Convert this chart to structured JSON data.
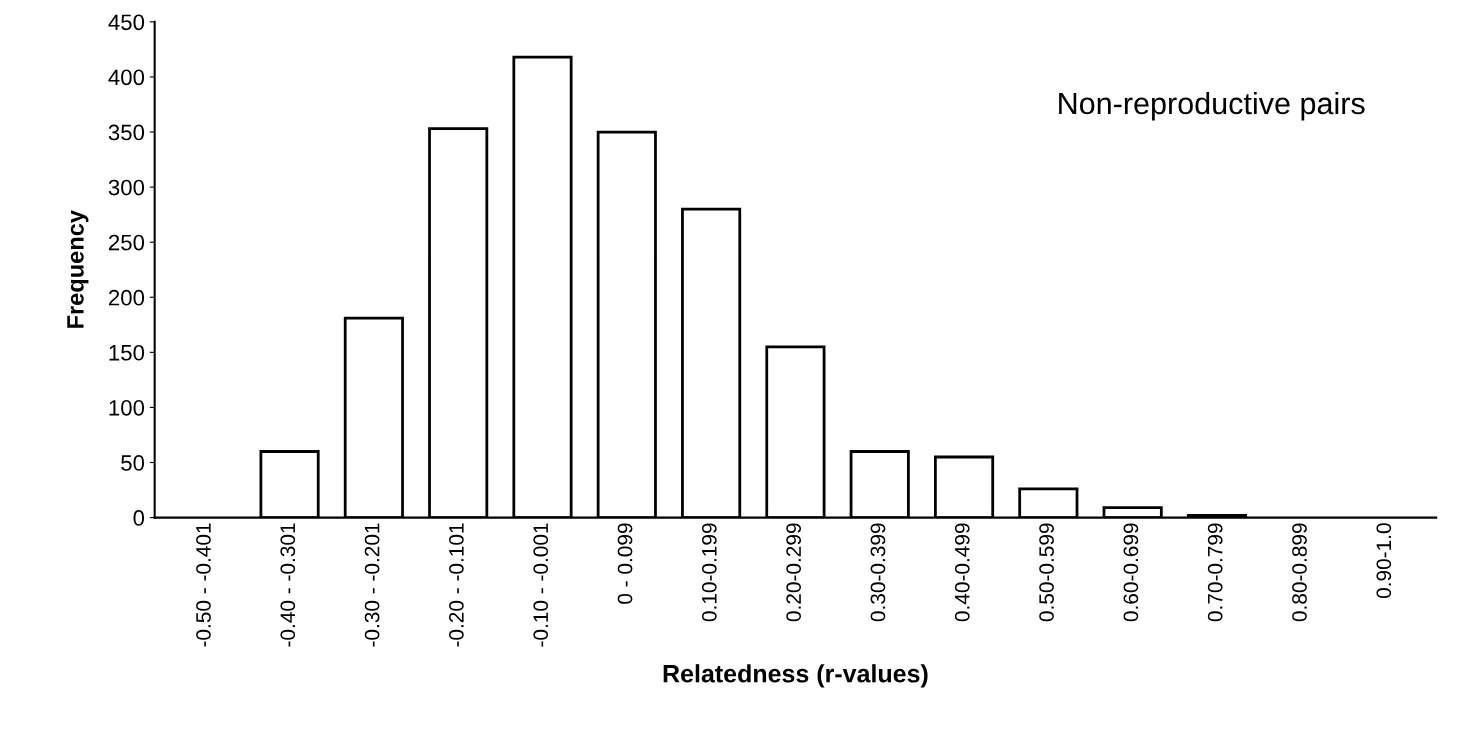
{
  "chart_data": {
    "type": "bar",
    "categories": [
      "-0.50 - -0.401",
      "-0.40 - -0.301",
      "-0.30 - -0.201",
      "-0.20 - -0.101",
      "-0.10 - -0.001",
      "0 - 0.099",
      "0.10-0.199",
      "0.20-0.299",
      "0.30-0.399",
      "0.40-0.499",
      "0.50-0.599",
      "0.60-0.699",
      "0.70-0.799",
      "0.80-0.899",
      "0.90-1.0"
    ],
    "values": [
      0,
      60,
      181,
      353,
      418,
      350,
      280,
      155,
      60,
      55,
      26,
      9,
      2,
      0,
      0
    ],
    "color": "#ffffff",
    "xlabel": "Relatedness (r-values)",
    "ylabel": "Frequency",
    "annotations": [
      "Non-reproductive pairs"
    ],
    "ylim": [
      0,
      450
    ],
    "yticks": [
      0,
      50,
      100,
      150,
      200,
      250,
      300,
      350,
      400,
      450
    ],
    "grid": false
  }
}
